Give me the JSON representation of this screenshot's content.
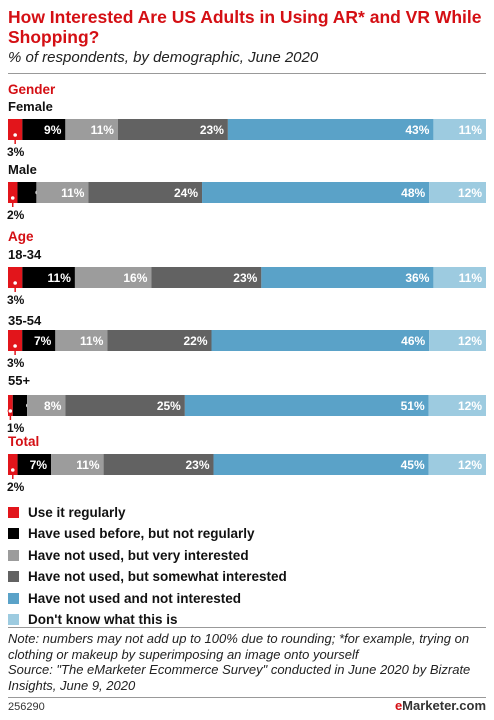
{
  "title": "How Interested Are US Adults in Using AR* and VR While Shopping?",
  "subtitle": "% of respondents, by demographic, June 2020",
  "chart_data": {
    "type": "bar",
    "stacked": true,
    "orientation": "horizontal",
    "groups": [
      {
        "label": "Gender",
        "categories": [
          "Female",
          "Male"
        ]
      },
      {
        "label": "Age",
        "categories": [
          "18-34",
          "35-54",
          "55+"
        ]
      },
      {
        "label": "Total",
        "categories": [
          ""
        ]
      }
    ],
    "categories": [
      "Female",
      "Male",
      "18-34",
      "35-54",
      "55+",
      "Total"
    ],
    "series": [
      {
        "name": "Use it regularly",
        "color": "#e2151b",
        "values": [
          3,
          2,
          3,
          3,
          1,
          2
        ]
      },
      {
        "name": "Have used before, but not regularly",
        "color": "#000000",
        "values": [
          9,
          4,
          11,
          7,
          3,
          7
        ]
      },
      {
        "name": "Have not used, but very interested",
        "color": "#9c9c9c",
        "values": [
          11,
          11,
          16,
          11,
          8,
          11
        ]
      },
      {
        "name": "Have not used, but somewhat interested",
        "color": "#626262",
        "values": [
          23,
          24,
          23,
          22,
          25,
          23
        ]
      },
      {
        "name": "Have not used and not interested",
        "color": "#5aa2c8",
        "values": [
          43,
          48,
          36,
          46,
          51,
          45
        ]
      },
      {
        "name": "Don't know what this is",
        "color": "#9dcbe0",
        "values": [
          11,
          12,
          11,
          12,
          12,
          12
        ]
      }
    ],
    "value_suffix": "%"
  },
  "note": "Note: numbers may not add up to 100% due to rounding; *for example, trying on clothing or makeup by superimposing an image onto yourself",
  "source": "Source: \"The eMarketer Ecommerce Survey\" conducted in June 2020 by Bizrate Insights, June 9, 2020",
  "footer_id": "256290",
  "brand_e": "e",
  "brand_rest": "Marketer",
  "brand_domain": ".com"
}
